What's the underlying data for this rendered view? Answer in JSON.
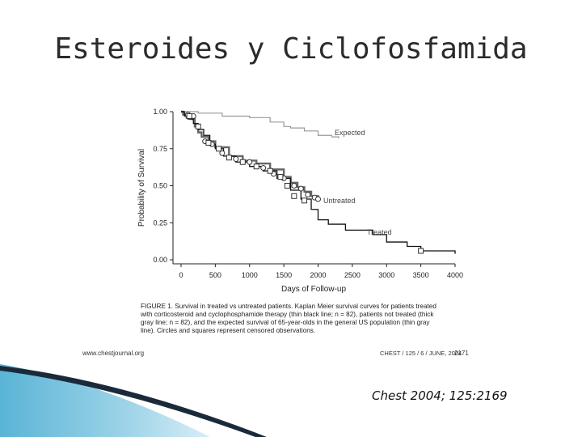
{
  "slide": {
    "title": "Esteroides y Ciclofosfamida",
    "citation": "Chest 2004; 125:2169"
  },
  "figure": {
    "caption_lines": [
      "FIGURE 1. Survival in treated vs untreated patients. Kaplan Meier survival curves for patients treated",
      "with corticosteroid and cyclophosphamide therapy (thin black line; n = 82), patients not treated (thick",
      "gray line; n = 82), and the expected survival of 65-year-olds in the general US population (thin gray",
      "line). Circles and squares represent censored observations."
    ],
    "footer_left": "www.chestjournal.org",
    "footer_right": "CHEST / 125 / 6 / JUNE, 2004",
    "page_number": "2171"
  },
  "chart_data": {
    "type": "line",
    "title": "",
    "xlabel": "Days of Follow-up",
    "ylabel": "Probability of Survival",
    "xlim": [
      0,
      4000
    ],
    "ylim": [
      0,
      1
    ],
    "x_ticks": [
      "0",
      "500",
      "1000",
      "1500",
      "2000",
      "2500",
      "3000",
      "3500",
      "4000"
    ],
    "y_ticks": [
      "0.00",
      "0.25",
      "0.50",
      "0.75",
      "1.00"
    ],
    "colors": {
      "expected": "#999999",
      "untreated": "#666666",
      "treated": "#111111",
      "censor": "#333333"
    },
    "series": [
      {
        "name": "Expected",
        "points": [
          [
            0,
            1.0
          ],
          [
            250,
            0.99
          ],
          [
            600,
            0.97
          ],
          [
            1000,
            0.96
          ],
          [
            1300,
            0.93
          ],
          [
            1500,
            0.9
          ],
          [
            1600,
            0.89
          ],
          [
            1800,
            0.87
          ],
          [
            2000,
            0.84
          ],
          [
            2200,
            0.83
          ],
          [
            2300,
            0.82
          ]
        ]
      },
      {
        "name": "Untreated",
        "points": [
          [
            0,
            1.0
          ],
          [
            30,
            0.98
          ],
          [
            80,
            0.96
          ],
          [
            150,
            0.95
          ],
          [
            200,
            0.9
          ],
          [
            250,
            0.86
          ],
          [
            300,
            0.83
          ],
          [
            400,
            0.8
          ],
          [
            500,
            0.76
          ],
          [
            700,
            0.7
          ],
          [
            900,
            0.67
          ],
          [
            1100,
            0.65
          ],
          [
            1300,
            0.61
          ],
          [
            1500,
            0.56
          ],
          [
            1600,
            0.52
          ],
          [
            1700,
            0.49
          ],
          [
            1800,
            0.46
          ],
          [
            1900,
            0.43
          ],
          [
            2000,
            0.41
          ]
        ]
      },
      {
        "name": "Treated",
        "points": [
          [
            0,
            1.0
          ],
          [
            50,
            0.97
          ],
          [
            100,
            0.95
          ],
          [
            180,
            0.92
          ],
          [
            250,
            0.88
          ],
          [
            330,
            0.84
          ],
          [
            420,
            0.78
          ],
          [
            500,
            0.75
          ],
          [
            620,
            0.7
          ],
          [
            800,
            0.66
          ],
          [
            1000,
            0.63
          ],
          [
            1200,
            0.6
          ],
          [
            1400,
            0.55
          ],
          [
            1600,
            0.47
          ],
          [
            1750,
            0.41
          ],
          [
            1900,
            0.34
          ],
          [
            2000,
            0.27
          ],
          [
            2150,
            0.24
          ],
          [
            2400,
            0.2
          ],
          [
            2600,
            0.2
          ],
          [
            2800,
            0.17
          ],
          [
            3000,
            0.12
          ],
          [
            3300,
            0.09
          ],
          [
            3500,
            0.06
          ],
          [
            3700,
            0.06
          ],
          [
            4000,
            0.04
          ]
        ]
      }
    ],
    "censored_circles": [
      [
        100,
        0.98
      ],
      [
        180,
        0.97
      ],
      [
        350,
        0.8
      ],
      [
        450,
        0.78
      ],
      [
        600,
        0.72
      ],
      [
        800,
        0.68
      ],
      [
        1000,
        0.66
      ],
      [
        1200,
        0.62
      ],
      [
        1350,
        0.58
      ],
      [
        1500,
        0.55
      ],
      [
        1650,
        0.5
      ],
      [
        1750,
        0.48
      ],
      [
        1850,
        0.44
      ],
      [
        1950,
        0.42
      ],
      [
        2000,
        0.41
      ]
    ],
    "censored_squares": [
      [
        120,
        0.97
      ],
      [
        250,
        0.9
      ],
      [
        400,
        0.79
      ],
      [
        550,
        0.75
      ],
      [
        700,
        0.69
      ],
      [
        900,
        0.66
      ],
      [
        1100,
        0.63
      ],
      [
        1300,
        0.6
      ],
      [
        1450,
        0.56
      ],
      [
        1550,
        0.5
      ],
      [
        1650,
        0.43
      ],
      [
        1800,
        0.4
      ],
      [
        3500,
        0.06
      ]
    ]
  }
}
